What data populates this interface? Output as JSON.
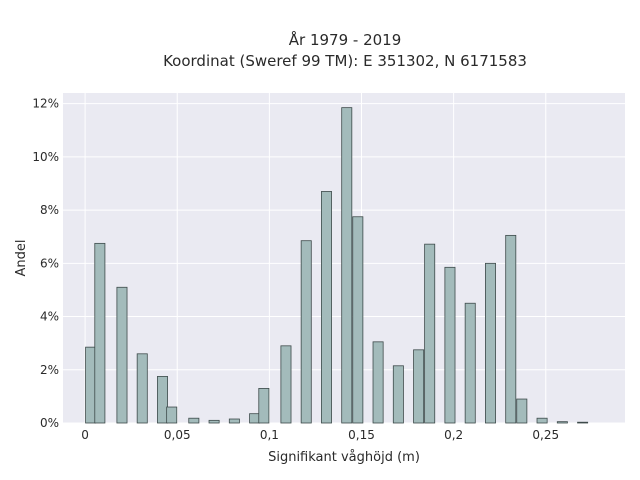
{
  "chart_data": {
    "type": "bar",
    "title_line1": "År 1979 - 2019",
    "title_line2": "Koordinat (Sweref 99 TM): E 351302, N 6171583",
    "xlabel": "Signifikant våghöjd (m)",
    "ylabel": "Andel",
    "xlim": [
      -0.012,
      0.293
    ],
    "ylim": [
      0,
      12.4
    ],
    "x_ticks": [
      {
        "value": 0,
        "label": "0"
      },
      {
        "value": 0.05,
        "label": "0,05"
      },
      {
        "value": 0.1,
        "label": "0,1"
      },
      {
        "value": 0.15,
        "label": "0,15"
      },
      {
        "value": 0.2,
        "label": "0,2"
      },
      {
        "value": 0.25,
        "label": "0,25"
      }
    ],
    "y_ticks": [
      {
        "value": 0,
        "label": "0%"
      },
      {
        "value": 2,
        "label": "2%"
      },
      {
        "value": 4,
        "label": "4%"
      },
      {
        "value": 6,
        "label": "6%"
      },
      {
        "value": 8,
        "label": "8%"
      },
      {
        "value": 10,
        "label": "10%"
      },
      {
        "value": 12,
        "label": "12%"
      }
    ],
    "bar_width": 0.0055,
    "x": [
      0.003,
      0.008,
      0.02,
      0.031,
      0.042,
      0.047,
      0.059,
      0.07,
      0.081,
      0.092,
      0.097,
      0.109,
      0.12,
      0.131,
      0.142,
      0.148,
      0.159,
      0.17,
      0.181,
      0.187,
      0.198,
      0.209,
      0.22,
      0.231,
      0.237,
      0.248,
      0.259,
      0.27
    ],
    "values": [
      2.85,
      6.75,
      5.1,
      2.6,
      1.75,
      0.6,
      0.18,
      0.1,
      0.15,
      0.35,
      1.3,
      2.9,
      6.85,
      8.7,
      11.85,
      7.75,
      3.05,
      2.15,
      2.75,
      6.72,
      5.85,
      4.5,
      6.0,
      7.05,
      0.9,
      0.18,
      0.05,
      0.03
    ],
    "grid": true
  }
}
